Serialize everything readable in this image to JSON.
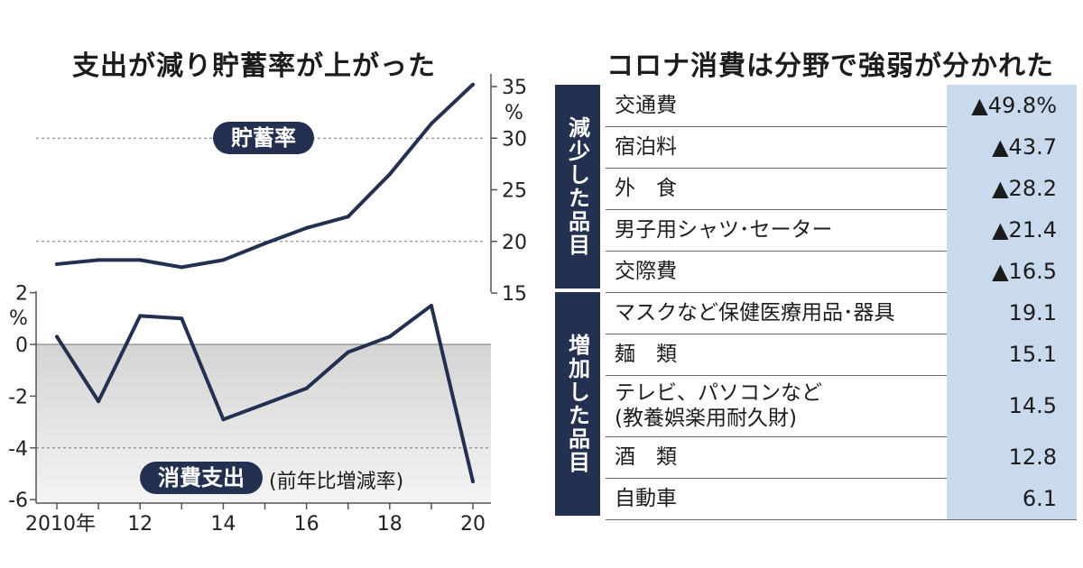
{
  "left_title": "支出が減り貯蓄率が上がった",
  "right_title": "コロナ消費は分野で強弱が分かれた",
  "chart_data": [
    {
      "type": "line",
      "series": [
        {
          "name": "貯蓄率",
          "values": [
            17.8,
            18.2,
            18.2,
            17.5,
            18.2,
            19.8,
            21.3,
            22.4,
            26.5,
            31.4,
            35.2
          ]
        }
      ],
      "x": [
        2010,
        2011,
        2012,
        2013,
        2014,
        2015,
        2016,
        2017,
        2018,
        2019,
        2020
      ],
      "ylim": [
        15,
        35
      ],
      "yticks": [
        "35",
        "30",
        "25",
        "20",
        "15"
      ],
      "yunit": "%",
      "grid_values": [
        20,
        30
      ]
    },
    {
      "type": "line",
      "series": [
        {
          "name": "消費支出",
          "values": [
            0.3,
            -2.2,
            1.1,
            1.0,
            -2.9,
            -2.3,
            -1.7,
            -0.3,
            0.3,
            1.5,
            -5.3
          ]
        }
      ],
      "x": [
        2010,
        2011,
        2012,
        2013,
        2014,
        2015,
        2016,
        2017,
        2018,
        2019,
        2020
      ],
      "ylim": [
        -6,
        2
      ],
      "yticks": [
        "2",
        "0",
        "-2",
        "-4",
        "-6"
      ],
      "yunit": "%",
      "grid_values": [
        -4
      ],
      "note": "(前年比増減率)",
      "xtick_labels": [
        "2010年",
        "12",
        "14",
        "16",
        "18",
        "20"
      ]
    },
    {
      "type": "table",
      "groups": [
        {
          "label": "減少した品目",
          "rows": [
            {
              "name": "交通費",
              "value": "▲49.8%"
            },
            {
              "name": "宿泊料",
              "value": "▲43.7"
            },
            {
              "name": "外　食",
              "value": "▲28.2"
            },
            {
              "name": "男子用シャツ･セーター",
              "value": "▲21.4"
            },
            {
              "name": "交際費",
              "value": "▲16.5"
            }
          ]
        },
        {
          "label": "増加した品目",
          "rows": [
            {
              "name": "マスクなど保健医療用品･器具",
              "value": "19.1"
            },
            {
              "name": "麺　類",
              "value": "15.1"
            },
            {
              "name": "テレビ、パソコンなど\n(教養娯楽用耐久財)",
              "value": "14.5"
            },
            {
              "name": "酒　類",
              "value": "12.8"
            },
            {
              "name": "自動車",
              "value": "6.1"
            }
          ]
        }
      ]
    }
  ],
  "colors": {
    "line": "#23304f",
    "accent": "#23304f",
    "value_bg": "#c9d9ee",
    "shade": "#e8e8e8"
  }
}
